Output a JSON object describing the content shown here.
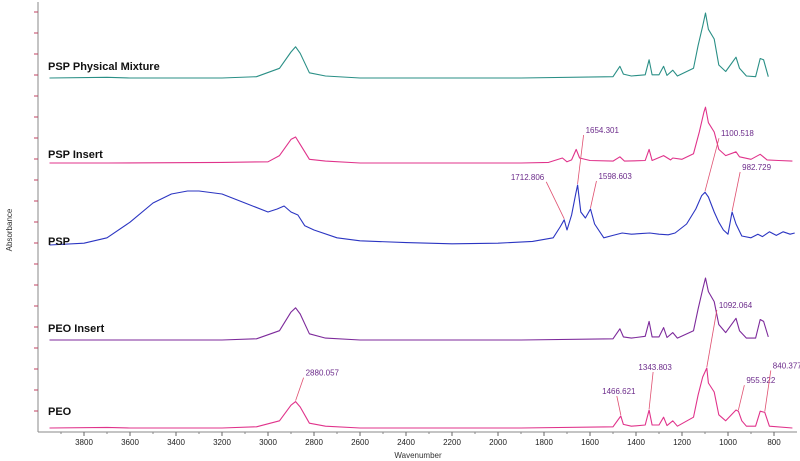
{
  "chart_data": {
    "type": "line",
    "xlabel": "Wavenumber",
    "ylabel": "Absorbance",
    "xlim": [
      4000,
      700
    ],
    "x_reversed": true,
    "x_ticks": [
      3800,
      3600,
      3400,
      3200,
      3000,
      2800,
      2600,
      2400,
      2200,
      2000,
      1800,
      1600,
      1400,
      1200,
      1000,
      800
    ],
    "grid": false,
    "series": [
      {
        "name": "PSP Physical Mixture",
        "color": "#2a8f86",
        "baseline": 0,
        "points": [
          [
            3950,
            0
          ],
          [
            3700,
            0.01
          ],
          [
            3600,
            0
          ],
          [
            3200,
            0
          ],
          [
            3050,
            0.02
          ],
          [
            2950,
            0.15
          ],
          [
            2900,
            0.4
          ],
          [
            2880,
            0.48
          ],
          [
            2860,
            0.38
          ],
          [
            2820,
            0.08
          ],
          [
            2750,
            0.03
          ],
          [
            2600,
            0
          ],
          [
            1900,
            0
          ],
          [
            1500,
            0.02
          ],
          [
            1470,
            0.18
          ],
          [
            1455,
            0.06
          ],
          [
            1420,
            0.03
          ],
          [
            1360,
            0.05
          ],
          [
            1343,
            0.28
          ],
          [
            1330,
            0.05
          ],
          [
            1300,
            0.05
          ],
          [
            1280,
            0.18
          ],
          [
            1265,
            0.04
          ],
          [
            1240,
            0.12
          ],
          [
            1220,
            0.03
          ],
          [
            1150,
            0.15
          ],
          [
            1130,
            0.5
          ],
          [
            1110,
            0.8
          ],
          [
            1098,
            1.0
          ],
          [
            1085,
            0.75
          ],
          [
            1060,
            0.6
          ],
          [
            1040,
            0.2
          ],
          [
            1010,
            0.1
          ],
          [
            965,
            0.32
          ],
          [
            950,
            0.15
          ],
          [
            920,
            0.03
          ],
          [
            880,
            0.02
          ],
          [
            860,
            0.3
          ],
          [
            845,
            0.28
          ],
          [
            825,
            0.02
          ]
        ]
      },
      {
        "name": "PSP Insert",
        "color": "#e0338b",
        "baseline": 1,
        "points": [
          [
            3950,
            0
          ],
          [
            3700,
            0
          ],
          [
            3200,
            0.01
          ],
          [
            3000,
            0.02
          ],
          [
            2950,
            0.12
          ],
          [
            2900,
            0.38
          ],
          [
            2880,
            0.42
          ],
          [
            2860,
            0.3
          ],
          [
            2820,
            0.06
          ],
          [
            2750,
            0.03
          ],
          [
            2600,
            0
          ],
          [
            1900,
            0
          ],
          [
            1780,
            0.01
          ],
          [
            1720,
            0.08
          ],
          [
            1700,
            0.02
          ],
          [
            1680,
            0.05
          ],
          [
            1660,
            0.22
          ],
          [
            1645,
            0.08
          ],
          [
            1600,
            0.04
          ],
          [
            1500,
            0.03
          ],
          [
            1470,
            0.1
          ],
          [
            1450,
            0.03
          ],
          [
            1360,
            0.04
          ],
          [
            1343,
            0.22
          ],
          [
            1330,
            0.04
          ],
          [
            1280,
            0.12
          ],
          [
            1250,
            0.05
          ],
          [
            1240,
            0.08
          ],
          [
            1200,
            0.06
          ],
          [
            1150,
            0.15
          ],
          [
            1125,
            0.5
          ],
          [
            1105,
            0.82
          ],
          [
            1098,
            0.9
          ],
          [
            1085,
            0.65
          ],
          [
            1060,
            0.5
          ],
          [
            1040,
            0.22
          ],
          [
            1010,
            0.12
          ],
          [
            965,
            0.18
          ],
          [
            950,
            0.1
          ],
          [
            900,
            0.06
          ],
          [
            860,
            0.14
          ],
          [
            830,
            0.05
          ],
          [
            780,
            0.04
          ],
          [
            720,
            0.03
          ]
        ]
      },
      {
        "name": "PSP",
        "color": "#2b35c2",
        "baseline": 2,
        "points": [
          [
            3950,
            0
          ],
          [
            3800,
            0.03
          ],
          [
            3700,
            0.12
          ],
          [
            3600,
            0.38
          ],
          [
            3500,
            0.7
          ],
          [
            3420,
            0.85
          ],
          [
            3350,
            0.9
          ],
          [
            3300,
            0.9
          ],
          [
            3200,
            0.85
          ],
          [
            3100,
            0.7
          ],
          [
            3000,
            0.55
          ],
          [
            2960,
            0.6
          ],
          [
            2930,
            0.65
          ],
          [
            2900,
            0.55
          ],
          [
            2870,
            0.5
          ],
          [
            2840,
            0.32
          ],
          [
            2800,
            0.25
          ],
          [
            2700,
            0.12
          ],
          [
            2600,
            0.07
          ],
          [
            2400,
            0.04
          ],
          [
            2200,
            0.02
          ],
          [
            2000,
            0.03
          ],
          [
            1850,
            0.06
          ],
          [
            1760,
            0.12
          ],
          [
            1730,
            0.3
          ],
          [
            1712,
            0.42
          ],
          [
            1700,
            0.25
          ],
          [
            1680,
            0.5
          ],
          [
            1662,
            0.85
          ],
          [
            1654,
            1.0
          ],
          [
            1640,
            0.55
          ],
          [
            1620,
            0.45
          ],
          [
            1598,
            0.6
          ],
          [
            1580,
            0.35
          ],
          [
            1540,
            0.12
          ],
          [
            1500,
            0.16
          ],
          [
            1460,
            0.2
          ],
          [
            1420,
            0.18
          ],
          [
            1380,
            0.19
          ],
          [
            1340,
            0.2
          ],
          [
            1300,
            0.18
          ],
          [
            1260,
            0.17
          ],
          [
            1230,
            0.2
          ],
          [
            1180,
            0.35
          ],
          [
            1140,
            0.6
          ],
          [
            1115,
            0.82
          ],
          [
            1100,
            0.88
          ],
          [
            1085,
            0.8
          ],
          [
            1060,
            0.55
          ],
          [
            1040,
            0.38
          ],
          [
            1020,
            0.25
          ],
          [
            1000,
            0.18
          ],
          [
            985,
            0.5
          ],
          [
            982,
            0.55
          ],
          [
            965,
            0.35
          ],
          [
            940,
            0.15
          ],
          [
            900,
            0.12
          ],
          [
            870,
            0.18
          ],
          [
            850,
            0.14
          ],
          [
            820,
            0.22
          ],
          [
            790,
            0.16
          ],
          [
            760,
            0.22
          ],
          [
            730,
            0.18
          ],
          [
            710,
            0.2
          ]
        ]
      },
      {
        "name": "PEO Insert",
        "color": "#7d2a9b",
        "baseline": 3,
        "points": [
          [
            3950,
            0
          ],
          [
            3600,
            0
          ],
          [
            3200,
            0
          ],
          [
            3050,
            0.02
          ],
          [
            2950,
            0.15
          ],
          [
            2900,
            0.45
          ],
          [
            2880,
            0.52
          ],
          [
            2860,
            0.42
          ],
          [
            2820,
            0.1
          ],
          [
            2750,
            0.03
          ],
          [
            2600,
            0
          ],
          [
            1900,
            0
          ],
          [
            1500,
            0.02
          ],
          [
            1470,
            0.18
          ],
          [
            1455,
            0.05
          ],
          [
            1420,
            0.03
          ],
          [
            1360,
            0.06
          ],
          [
            1343,
            0.3
          ],
          [
            1330,
            0.05
          ],
          [
            1300,
            0.05
          ],
          [
            1280,
            0.2
          ],
          [
            1265,
            0.04
          ],
          [
            1240,
            0.12
          ],
          [
            1220,
            0.03
          ],
          [
            1150,
            0.15
          ],
          [
            1130,
            0.5
          ],
          [
            1110,
            0.82
          ],
          [
            1098,
            1.0
          ],
          [
            1085,
            0.78
          ],
          [
            1060,
            0.62
          ],
          [
            1040,
            0.25
          ],
          [
            1010,
            0.12
          ],
          [
            965,
            0.35
          ],
          [
            950,
            0.15
          ],
          [
            920,
            0.03
          ],
          [
            880,
            0.03
          ],
          [
            860,
            0.33
          ],
          [
            845,
            0.3
          ],
          [
            825,
            0.05
          ]
        ]
      },
      {
        "name": "PEO",
        "color": "#e0338b",
        "baseline": 4,
        "points": [
          [
            3950,
            0
          ],
          [
            3700,
            0.01
          ],
          [
            3600,
            0
          ],
          [
            3200,
            0
          ],
          [
            3050,
            0.02
          ],
          [
            2950,
            0.12
          ],
          [
            2900,
            0.38
          ],
          [
            2880,
            0.44
          ],
          [
            2860,
            0.35
          ],
          [
            2820,
            0.08
          ],
          [
            2750,
            0.03
          ],
          [
            2600,
            0
          ],
          [
            1900,
            0
          ],
          [
            1500,
            0.02
          ],
          [
            1466,
            0.2
          ],
          [
            1455,
            0.06
          ],
          [
            1420,
            0.03
          ],
          [
            1360,
            0.05
          ],
          [
            1343,
            0.3
          ],
          [
            1330,
            0.05
          ],
          [
            1300,
            0.05
          ],
          [
            1280,
            0.18
          ],
          [
            1265,
            0.04
          ],
          [
            1240,
            0.12
          ],
          [
            1220,
            0.03
          ],
          [
            1150,
            0.18
          ],
          [
            1130,
            0.55
          ],
          [
            1110,
            0.85
          ],
          [
            1092,
            1.0
          ],
          [
            1085,
            0.75
          ],
          [
            1060,
            0.6
          ],
          [
            1040,
            0.22
          ],
          [
            1010,
            0.12
          ],
          [
            965,
            0.3
          ],
          [
            955,
            0.28
          ],
          [
            940,
            0.12
          ],
          [
            920,
            0.03
          ],
          [
            880,
            0.03
          ],
          [
            860,
            0.28
          ],
          [
            840,
            0.26
          ],
          [
            820,
            0.03
          ],
          [
            720,
            0.0
          ]
        ]
      }
    ],
    "sample_labels": [
      "PSP Physical Mixture",
      "PSP Insert",
      "PSP",
      "PEO Insert",
      "PEO"
    ],
    "annotations": [
      {
        "series": 2,
        "x": 1712,
        "label": "1712.806",
        "color": "#c03060"
      },
      {
        "series": 2,
        "x": 1654,
        "label": "1654.301",
        "color": "#c03060"
      },
      {
        "series": 2,
        "x": 1598,
        "label": "1598.603",
        "color": "#c03060"
      },
      {
        "series": 2,
        "x": 1100,
        "label": "1100.518",
        "color": "#c03060"
      },
      {
        "series": 2,
        "x": 982,
        "label": "982.729",
        "color": "#c03060"
      },
      {
        "series": 4,
        "x": 2880,
        "label": "2880.057",
        "color": "#c03060"
      },
      {
        "series": 4,
        "x": 1466,
        "label": "1466.621",
        "color": "#c03060"
      },
      {
        "series": 4,
        "x": 1343,
        "label": "1343.803",
        "color": "#c03060"
      },
      {
        "series": 4,
        "x": 1092,
        "label": "1092.064",
        "color": "#c03060"
      },
      {
        "series": 4,
        "x": 955,
        "label": "955.922",
        "color": "#c03060"
      },
      {
        "series": 4,
        "x": 840,
        "label": "840.377",
        "color": "#c03060"
      }
    ]
  }
}
